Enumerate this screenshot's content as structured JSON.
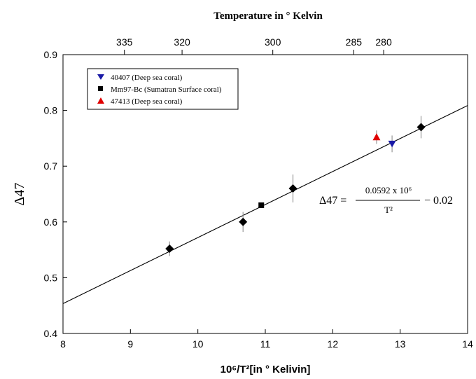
{
  "chart_data": {
    "type": "scatter",
    "top_axis_title": "Temperature in ° Kelvin",
    "xlabel": "10⁶/T²[in ° Kelivin]",
    "ylabel": "Δ47",
    "xlim": [
      8,
      14
    ],
    "ylim": [
      0.4,
      0.9
    ],
    "x_ticks": [
      8,
      9,
      10,
      11,
      12,
      13,
      14
    ],
    "y_ticks": [
      0.4,
      0.5,
      0.6,
      0.7,
      0.8,
      0.9
    ],
    "top_ticks": [
      335,
      320,
      300,
      285,
      280
    ],
    "series": [
      {
        "marker": "diamond",
        "color": "#000000",
        "points": [
          {
            "x": 9.58,
            "y": 0.552,
            "err": 0.013
          },
          {
            "x": 10.67,
            "y": 0.6,
            "err": 0.018
          },
          {
            "x": 11.41,
            "y": 0.66,
            "err": 0.025
          },
          {
            "x": 13.31,
            "y": 0.77,
            "err": 0.02
          }
        ]
      },
      {
        "name": "40407 (Deep sea coral)",
        "marker": "triangle-down",
        "color": "#1a1aa6",
        "points": [
          {
            "x": 12.88,
            "y": 0.74,
            "err": 0.015
          }
        ]
      },
      {
        "name": "Mm97-Bc (Sumatran Surface coral)",
        "marker": "square",
        "color": "#000000",
        "points": [
          {
            "x": 10.94,
            "y": 0.63,
            "err": 0.0
          }
        ]
      },
      {
        "name": "47413 (Deep sea coral)",
        "marker": "triangle-up",
        "color": "#e00000",
        "points": [
          {
            "x": 12.65,
            "y": 0.752,
            "err": 0.012
          }
        ]
      }
    ],
    "fit_line": {
      "slope": 0.0592,
      "intercept": -0.02
    },
    "equation": {
      "lhs": "Δ47 =",
      "numerator": "0.0592 x 10⁶",
      "denominator": "T²",
      "suffix": "− 0.02"
    },
    "legend_placement": "top-left",
    "grid": false
  }
}
